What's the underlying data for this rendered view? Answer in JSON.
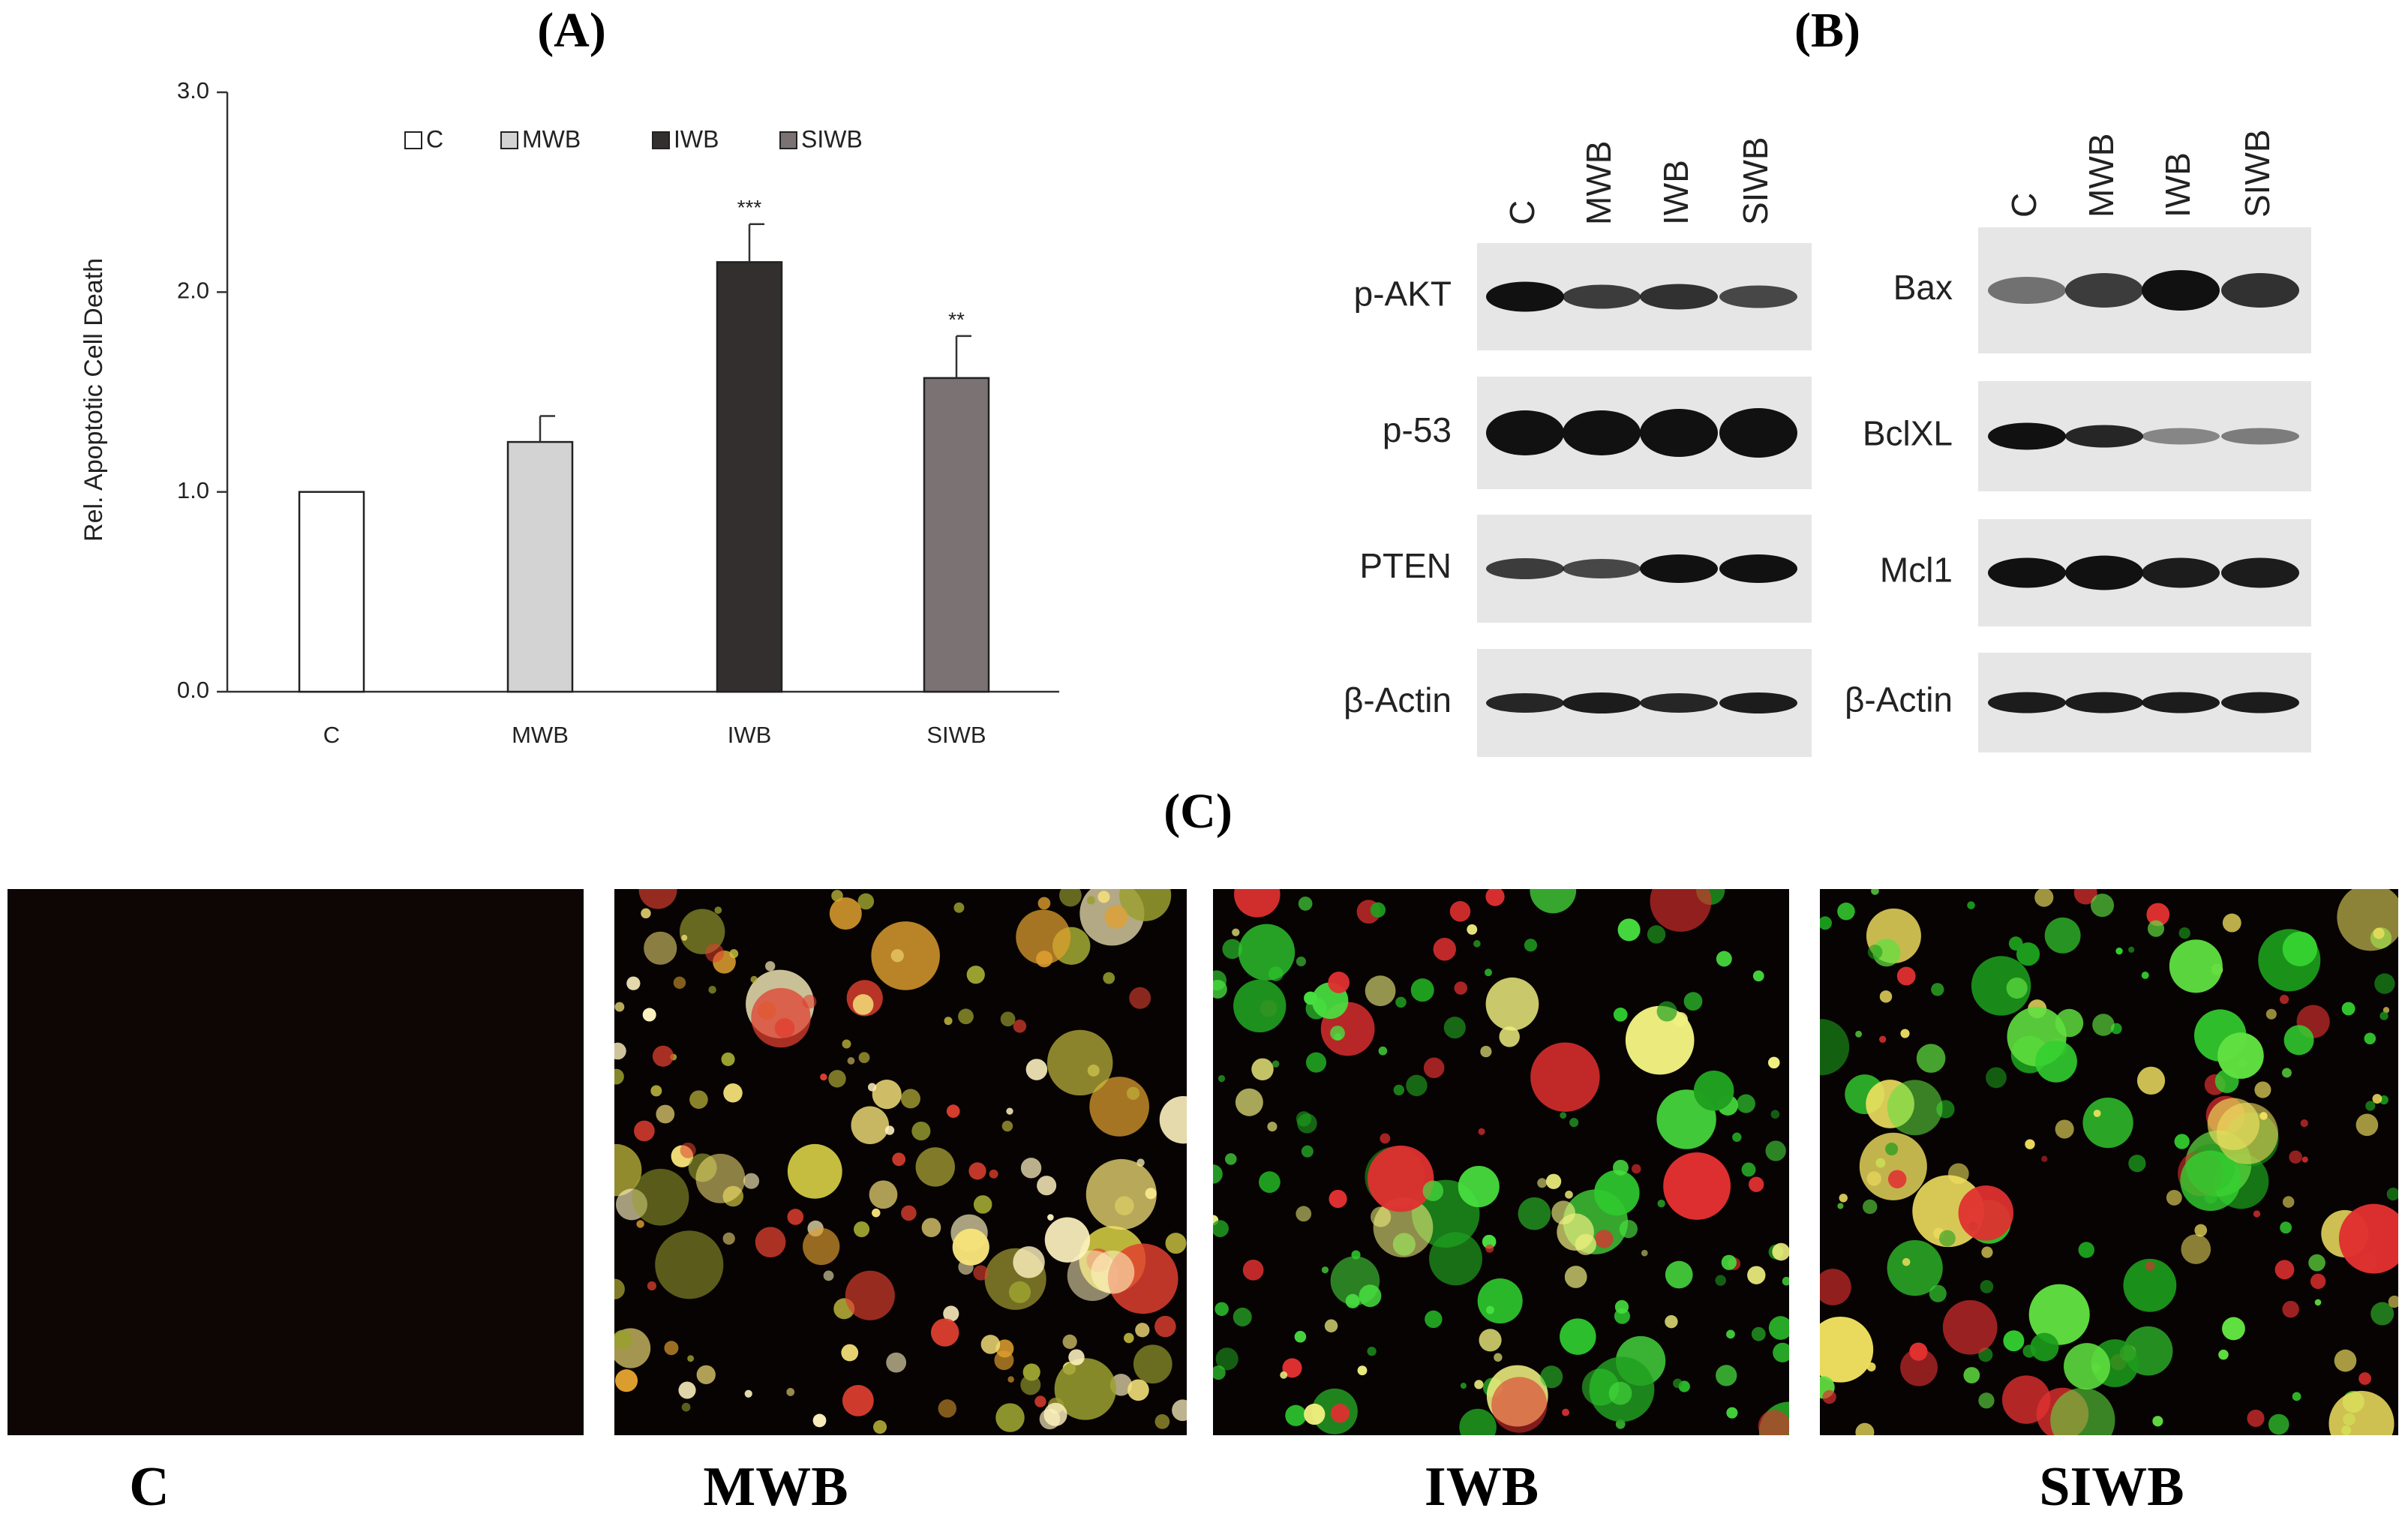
{
  "chart_data": {
    "type": "bar",
    "ylabel": "Rel. Apoptotic Cell Death",
    "categories": [
      "C",
      "MWB",
      "IWB",
      "SIWB"
    ],
    "values": [
      1.0,
      1.25,
      2.15,
      1.57
    ],
    "errors": [
      0,
      0.13,
      0.19,
      0.21
    ],
    "colors": [
      "#ffffff",
      "#d3d3d3",
      "#332f2f",
      "#7b7373"
    ],
    "annotations": [
      {
        "category": 2,
        "text": "***"
      },
      {
        "category": 3,
        "text": "**"
      }
    ],
    "ylim": [
      0,
      3
    ],
    "yticks": [
      {
        "value": 0,
        "label": "0.0"
      },
      {
        "value": 1,
        "label": "1.0"
      },
      {
        "value": 2,
        "label": "2.0"
      },
      {
        "value": 3,
        "label": "3.0"
      }
    ],
    "legend": "top"
  },
  "panel_labels": [
    "(A)",
    "(B)",
    "(C)"
  ],
  "blots": [
    {
      "lanes": [
        "C",
        "MWB",
        "IWB",
        "SIWB"
      ],
      "rows": [
        "p-AKT",
        "p-53",
        "PTEN",
        "β-Actin"
      ]
    },
    {
      "lanes": [
        "C",
        "MWB",
        "IWB",
        "SIWB"
      ],
      "rows": [
        "Bax",
        "BclXL",
        "Mcl1",
        "β-Actin"
      ]
    }
  ],
  "images": {
    "labels": [
      "C",
      "MWB",
      "IWB",
      "SIWB"
    ]
  }
}
